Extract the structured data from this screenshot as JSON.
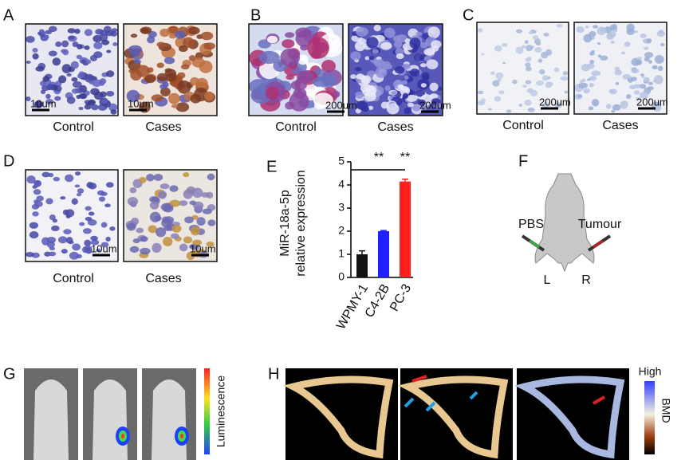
{
  "panels": {
    "A": {
      "letter": "A",
      "captions": [
        "Control",
        "Cases"
      ],
      "scale_bars": [
        "10um",
        "10um"
      ]
    },
    "B": {
      "letter": "B",
      "captions": [
        "Control",
        "Cases"
      ],
      "scale_bars": [
        "200um",
        "200um"
      ]
    },
    "C": {
      "letter": "C",
      "captions": [
        "Control",
        "Cases"
      ],
      "scale_bars": [
        "200um",
        "200um"
      ]
    },
    "D": {
      "letter": "D",
      "captions": [
        "Control",
        "Cases"
      ],
      "scale_bars": [
        "10um",
        "10um"
      ]
    },
    "E": {
      "letter": "E"
    },
    "F": {
      "letter": "F",
      "left_label": "PBS",
      "right_label": "Tumour",
      "left_side": "L",
      "right_side": "R"
    },
    "G": {
      "letter": "G",
      "colorbar_label": "Luminescence"
    },
    "H": {
      "letter": "H",
      "colorbar_top": "High",
      "colorbar_label": "BMD"
    }
  },
  "chart_data": {
    "type": "bar",
    "y_label": [
      "MiR-18a-5p",
      "relative expression"
    ],
    "categories": [
      "WPMY-1",
      "C4-2B",
      "PC-3"
    ],
    "values": [
      1.0,
      2.0,
      4.15
    ],
    "errors": [
      0.15,
      0.03,
      0.1
    ],
    "colors": [
      "#111111",
      "#1f1fff",
      "#ff2020"
    ],
    "annotations": [
      "**",
      "**"
    ],
    "ylim": [
      0,
      5
    ],
    "yticks": [
      0,
      1,
      2,
      3,
      4,
      5
    ]
  }
}
